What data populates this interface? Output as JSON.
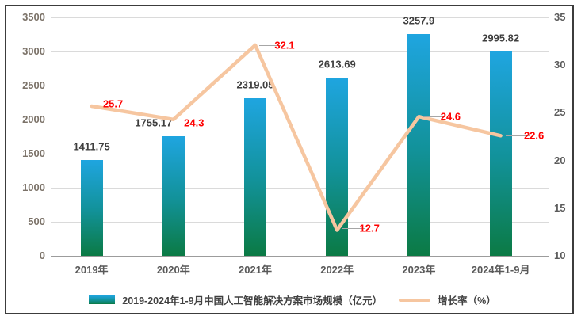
{
  "chart_data": {
    "type": "bar",
    "subtype": "bar+line combo, dual axis",
    "title": "",
    "categories": [
      "2019年",
      "2020年",
      "2021年",
      "2022年",
      "2023年",
      "2024年1-9月"
    ],
    "series": [
      {
        "name": "2019-2024年1-9月中国人工智能解决方案市场规模（亿元）",
        "type": "bar",
        "axis": "left",
        "values": [
          1411.75,
          1755.17,
          2319.05,
          2613.69,
          3257.9,
          2995.82
        ],
        "labels": [
          "1411.75",
          "1755.17",
          "2319.05",
          "2613.69",
          "3257.9",
          "2995.82"
        ]
      },
      {
        "name": "增长率（%）",
        "type": "line",
        "axis": "right",
        "values": [
          25.7,
          24.3,
          32.1,
          12.7,
          24.6,
          22.6
        ],
        "labels": [
          "25.7",
          "24.3",
          "32.1",
          "12.7",
          "24.6",
          "22.6"
        ]
      }
    ],
    "left_axis": {
      "min": 0,
      "max": 3500,
      "step": 500,
      "ticks": [
        "3500",
        "3000",
        "2500",
        "2000",
        "1500",
        "1000",
        "500",
        "0"
      ]
    },
    "right_axis": {
      "min": 10,
      "max": 35,
      "step": 5,
      "ticks": [
        "35",
        "30",
        "25",
        "20",
        "15",
        "10"
      ]
    },
    "grid": true,
    "legend": {
      "position": "bottom",
      "bar_label": "2019-2024年1-9月中国人工智能解决方案市场规模（亿元）",
      "line_label": "增长率（%）"
    },
    "colors": {
      "bar_top": "#1FA5E0",
      "bar_mid": "#12929A",
      "bar_bottom": "#0B7A44",
      "line": "#F6C6A0",
      "bar_value_label": "#3F3F3F",
      "line_value_label": "#FF0000",
      "axis_label_left": "#7B7268",
      "axis_label_right": "#5B5B5B",
      "xaxis_label": "#595959",
      "grid": "#DADADA",
      "axis_line": "#9C9C9C",
      "leader": "#A6A6A6",
      "legend_text": "#404040",
      "frame_border": "#3C3C3C"
    }
  }
}
